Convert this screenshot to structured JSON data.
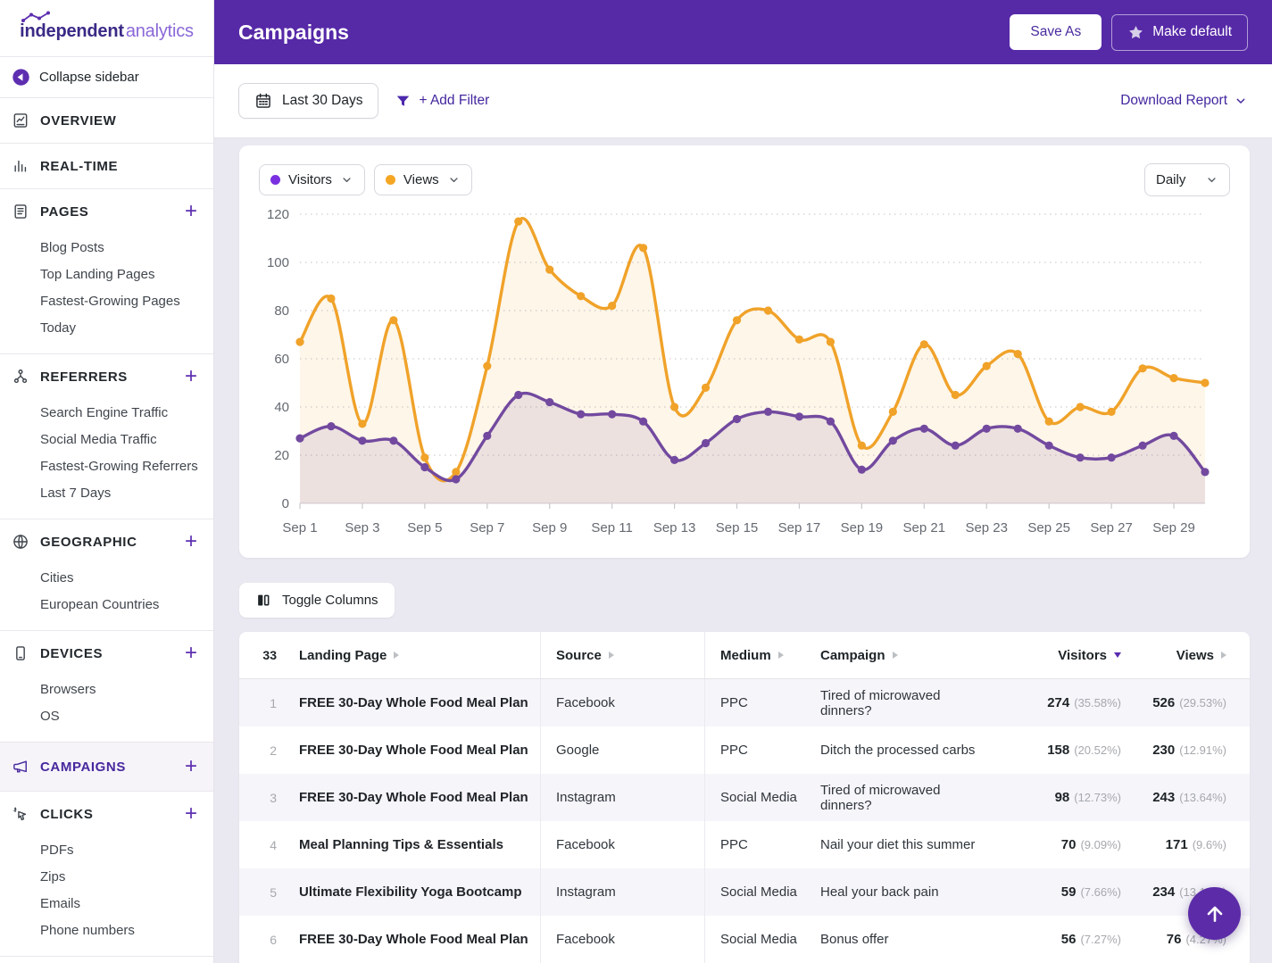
{
  "colors": {
    "header_purple": "#5629a7",
    "accent_purple": "#43269e",
    "chart_visitors": "#72499f",
    "chart_views": "#f0a229",
    "legend_visitors_dot": "#7a30e0",
    "legend_views_dot": "#f5a623",
    "row_stripe": "#f6f5fa",
    "scroll_button": "#5c2ca8"
  },
  "sidebar": {
    "logo": {
      "bold": "independent",
      "light": "analytics"
    },
    "collapse_label": "Collapse sidebar",
    "sections": [
      {
        "id": "overview",
        "icon": "overview-icon",
        "label": "OVERVIEW",
        "has_add": false,
        "active": false,
        "items": []
      },
      {
        "id": "real-time",
        "icon": "realtime-icon",
        "label": "REAL-TIME",
        "has_add": false,
        "active": false,
        "items": []
      },
      {
        "id": "pages",
        "icon": "pages-icon",
        "label": "PAGES",
        "has_add": true,
        "active": false,
        "items": [
          "Blog Posts",
          "Top Landing Pages",
          "Fastest-Growing Pages",
          "Today"
        ]
      },
      {
        "id": "referrers",
        "icon": "referrers-icon",
        "label": "REFERRERS",
        "has_add": true,
        "active": false,
        "items": [
          "Search Engine Traffic",
          "Social Media Traffic",
          "Fastest-Growing Referrers",
          "Last 7 Days"
        ]
      },
      {
        "id": "geographic",
        "icon": "geographic-icon",
        "label": "GEOGRAPHIC",
        "has_add": true,
        "active": false,
        "items": [
          "Cities",
          "European Countries"
        ]
      },
      {
        "id": "devices",
        "icon": "devices-icon",
        "label": "DEVICES",
        "has_add": true,
        "active": false,
        "items": [
          "Browsers",
          "OS"
        ]
      },
      {
        "id": "campaigns",
        "icon": "campaigns-icon",
        "label": "CAMPAIGNS",
        "has_add": true,
        "active": true,
        "items": []
      },
      {
        "id": "clicks",
        "icon": "clicks-icon",
        "label": "CLICKS",
        "has_add": true,
        "active": false,
        "items": [
          "PDFs",
          "Zips",
          "Emails",
          "Phone numbers"
        ]
      }
    ]
  },
  "header": {
    "title": "Campaigns",
    "save_as_label": "Save As",
    "make_default_label": "Make default"
  },
  "toolbar": {
    "date_range_label": "Last 30 Days",
    "add_filter_label": "+ Add Filter",
    "download_report_label": "Download Report"
  },
  "chart_controls": {
    "metric1": "Visitors",
    "metric2": "Views",
    "interval": "Daily"
  },
  "chart_data": {
    "type": "area",
    "title": "",
    "xlabel": "",
    "ylabel": "",
    "ylim": [
      0,
      120
    ],
    "yticks": [
      0,
      20,
      40,
      60,
      80,
      100,
      120
    ],
    "grid": "dotted-horizontal",
    "legend_position": "top-left",
    "x_tick_step": 2,
    "categories": [
      "Sep 1",
      "Sep 2",
      "Sep 3",
      "Sep 4",
      "Sep 5",
      "Sep 6",
      "Sep 7",
      "Sep 8",
      "Sep 9",
      "Sep 10",
      "Sep 11",
      "Sep 12",
      "Sep 13",
      "Sep 14",
      "Sep 15",
      "Sep 16",
      "Sep 17",
      "Sep 18",
      "Sep 19",
      "Sep 20",
      "Sep 21",
      "Sep 22",
      "Sep 23",
      "Sep 24",
      "Sep 25",
      "Sep 26",
      "Sep 27",
      "Sep 28",
      "Sep 29",
      "Sep 30"
    ],
    "series": [
      {
        "name": "Views",
        "color": "#f0a229",
        "fill": "rgba(240,162,41,0.10)",
        "values": [
          67,
          85,
          33,
          76,
          19,
          13,
          57,
          117,
          97,
          86,
          82,
          106,
          40,
          48,
          76,
          80,
          68,
          67,
          24,
          38,
          66,
          45,
          57,
          62,
          34,
          40,
          38,
          56,
          52,
          50
        ]
      },
      {
        "name": "Visitors",
        "color": "#72499f",
        "fill": "rgba(113,77,160,0.12)",
        "values": [
          27,
          32,
          26,
          26,
          15,
          10,
          28,
          45,
          42,
          37,
          37,
          34,
          18,
          25,
          35,
          38,
          36,
          34,
          14,
          26,
          31,
          24,
          31,
          31,
          24,
          19,
          19,
          24,
          28,
          13
        ]
      }
    ]
  },
  "table": {
    "toggle_columns_label": "Toggle Columns",
    "row_count": "33",
    "columns": [
      {
        "label": "Landing Page",
        "sort": "none"
      },
      {
        "label": "Source",
        "sort": "none"
      },
      {
        "label": "Medium",
        "sort": "none"
      },
      {
        "label": "Campaign",
        "sort": "none"
      },
      {
        "label": "Visitors",
        "sort": "desc"
      },
      {
        "label": "Views",
        "sort": "none"
      }
    ],
    "rows": [
      {
        "num": "1",
        "landing_page": "FREE 30-Day Whole Food Meal Plan",
        "source": "Facebook",
        "medium": "PPC",
        "campaign": "Tired of microwaved dinners?",
        "visitors": "274",
        "visitors_pct": "(35.58%)",
        "views": "526",
        "views_pct": "(29.53%)"
      },
      {
        "num": "2",
        "landing_page": "FREE 30-Day Whole Food Meal Plan",
        "source": "Google",
        "medium": "PPC",
        "campaign": "Ditch the processed carbs",
        "visitors": "158",
        "visitors_pct": "(20.52%)",
        "views": "230",
        "views_pct": "(12.91%)"
      },
      {
        "num": "3",
        "landing_page": "FREE 30-Day Whole Food Meal Plan",
        "source": "Instagram",
        "medium": "Social Media",
        "campaign": "Tired of microwaved dinners?",
        "visitors": "98",
        "visitors_pct": "(12.73%)",
        "views": "243",
        "views_pct": "(13.64%)"
      },
      {
        "num": "4",
        "landing_page": "Meal Planning Tips & Essentials",
        "source": "Facebook",
        "medium": "PPC",
        "campaign": "Nail your diet this summer",
        "visitors": "70",
        "visitors_pct": "(9.09%)",
        "views": "171",
        "views_pct": "(9.6%)"
      },
      {
        "num": "5",
        "landing_page": "Ultimate Flexibility Yoga Bootcamp",
        "source": "Instagram",
        "medium": "Social Media",
        "campaign": "Heal your back pain",
        "visitors": "59",
        "visitors_pct": "(7.66%)",
        "views": "234",
        "views_pct": "(13.14%)"
      },
      {
        "num": "6",
        "landing_page": "FREE 30-Day Whole Food Meal Plan",
        "source": "Facebook",
        "medium": "Social Media",
        "campaign": "Bonus offer",
        "visitors": "56",
        "visitors_pct": "(7.27%)",
        "views": "76",
        "views_pct": "(4.27%)"
      }
    ]
  }
}
